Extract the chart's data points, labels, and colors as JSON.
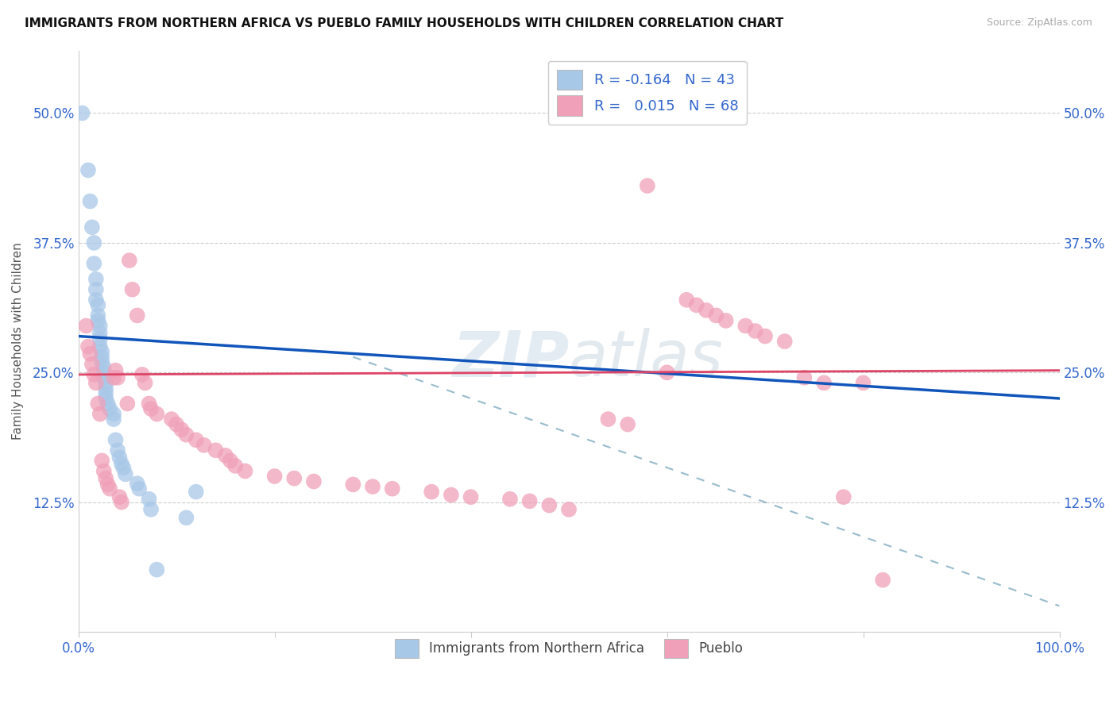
{
  "title": "IMMIGRANTS FROM NORTHERN AFRICA VS PUEBLO FAMILY HOUSEHOLDS WITH CHILDREN CORRELATION CHART",
  "source": "Source: ZipAtlas.com",
  "ylabel": "Family Households with Children",
  "ytick_labels": [
    "",
    "12.5%",
    "25.0%",
    "37.5%",
    "50.0%"
  ],
  "ytick_values": [
    0.0,
    0.125,
    0.25,
    0.375,
    0.5
  ],
  "xlim": [
    0.0,
    1.0
  ],
  "ylim": [
    0.0,
    0.56
  ],
  "blue_color": "#a8c8e8",
  "pink_color": "#f0a0b8",
  "blue_line_color": "#1155bb",
  "pink_line_color": "#dd4466",
  "dashed_line_color": "#99bbcc",
  "watermark": "ZIPatlas",
  "blue_scatter": [
    [
      0.004,
      0.5
    ],
    [
      0.01,
      0.445
    ],
    [
      0.012,
      0.415
    ],
    [
      0.014,
      0.39
    ],
    [
      0.016,
      0.375
    ],
    [
      0.016,
      0.355
    ],
    [
      0.018,
      0.34
    ],
    [
      0.018,
      0.33
    ],
    [
      0.018,
      0.32
    ],
    [
      0.02,
      0.315
    ],
    [
      0.02,
      0.305
    ],
    [
      0.02,
      0.3
    ],
    [
      0.022,
      0.295
    ],
    [
      0.022,
      0.288
    ],
    [
      0.022,
      0.282
    ],
    [
      0.022,
      0.275
    ],
    [
      0.024,
      0.27
    ],
    [
      0.024,
      0.265
    ],
    [
      0.024,
      0.26
    ],
    [
      0.026,
      0.255
    ],
    [
      0.026,
      0.25
    ],
    [
      0.026,
      0.245
    ],
    [
      0.028,
      0.24
    ],
    [
      0.028,
      0.235
    ],
    [
      0.028,
      0.23
    ],
    [
      0.028,
      0.225
    ],
    [
      0.03,
      0.22
    ],
    [
      0.032,
      0.215
    ],
    [
      0.036,
      0.21
    ],
    [
      0.036,
      0.205
    ],
    [
      0.038,
      0.185
    ],
    [
      0.04,
      0.175
    ],
    [
      0.042,
      0.168
    ],
    [
      0.044,
      0.162
    ],
    [
      0.046,
      0.158
    ],
    [
      0.048,
      0.152
    ],
    [
      0.06,
      0.143
    ],
    [
      0.062,
      0.138
    ],
    [
      0.072,
      0.128
    ],
    [
      0.074,
      0.118
    ],
    [
      0.08,
      0.06
    ],
    [
      0.11,
      0.11
    ],
    [
      0.12,
      0.135
    ]
  ],
  "pink_scatter": [
    [
      0.008,
      0.295
    ],
    [
      0.01,
      0.275
    ],
    [
      0.012,
      0.268
    ],
    [
      0.014,
      0.258
    ],
    [
      0.016,
      0.248
    ],
    [
      0.018,
      0.24
    ],
    [
      0.02,
      0.22
    ],
    [
      0.022,
      0.21
    ],
    [
      0.024,
      0.165
    ],
    [
      0.026,
      0.155
    ],
    [
      0.028,
      0.148
    ],
    [
      0.03,
      0.142
    ],
    [
      0.032,
      0.138
    ],
    [
      0.036,
      0.245
    ],
    [
      0.038,
      0.252
    ],
    [
      0.04,
      0.245
    ],
    [
      0.042,
      0.13
    ],
    [
      0.044,
      0.125
    ],
    [
      0.05,
      0.22
    ],
    [
      0.052,
      0.358
    ],
    [
      0.055,
      0.33
    ],
    [
      0.06,
      0.305
    ],
    [
      0.065,
      0.248
    ],
    [
      0.068,
      0.24
    ],
    [
      0.072,
      0.22
    ],
    [
      0.074,
      0.215
    ],
    [
      0.08,
      0.21
    ],
    [
      0.095,
      0.205
    ],
    [
      0.1,
      0.2
    ],
    [
      0.105,
      0.195
    ],
    [
      0.11,
      0.19
    ],
    [
      0.12,
      0.185
    ],
    [
      0.128,
      0.18
    ],
    [
      0.14,
      0.175
    ],
    [
      0.15,
      0.17
    ],
    [
      0.155,
      0.165
    ],
    [
      0.16,
      0.16
    ],
    [
      0.17,
      0.155
    ],
    [
      0.2,
      0.15
    ],
    [
      0.22,
      0.148
    ],
    [
      0.24,
      0.145
    ],
    [
      0.28,
      0.142
    ],
    [
      0.3,
      0.14
    ],
    [
      0.32,
      0.138
    ],
    [
      0.36,
      0.135
    ],
    [
      0.38,
      0.132
    ],
    [
      0.4,
      0.13
    ],
    [
      0.44,
      0.128
    ],
    [
      0.46,
      0.126
    ],
    [
      0.48,
      0.122
    ],
    [
      0.5,
      0.118
    ],
    [
      0.54,
      0.205
    ],
    [
      0.56,
      0.2
    ],
    [
      0.58,
      0.43
    ],
    [
      0.6,
      0.25
    ],
    [
      0.62,
      0.32
    ],
    [
      0.63,
      0.315
    ],
    [
      0.64,
      0.31
    ],
    [
      0.65,
      0.305
    ],
    [
      0.66,
      0.3
    ],
    [
      0.68,
      0.295
    ],
    [
      0.69,
      0.29
    ],
    [
      0.7,
      0.285
    ],
    [
      0.72,
      0.28
    ],
    [
      0.74,
      0.245
    ],
    [
      0.76,
      0.24
    ],
    [
      0.78,
      0.13
    ],
    [
      0.8,
      0.24
    ],
    [
      0.82,
      0.05
    ]
  ],
  "blue_trend": [
    0.0,
    0.285,
    1.0,
    0.225
  ],
  "pink_trend": [
    0.0,
    0.248,
    1.0,
    0.252
  ],
  "dashed_trend": [
    0.28,
    0.265,
    1.0,
    0.025
  ]
}
